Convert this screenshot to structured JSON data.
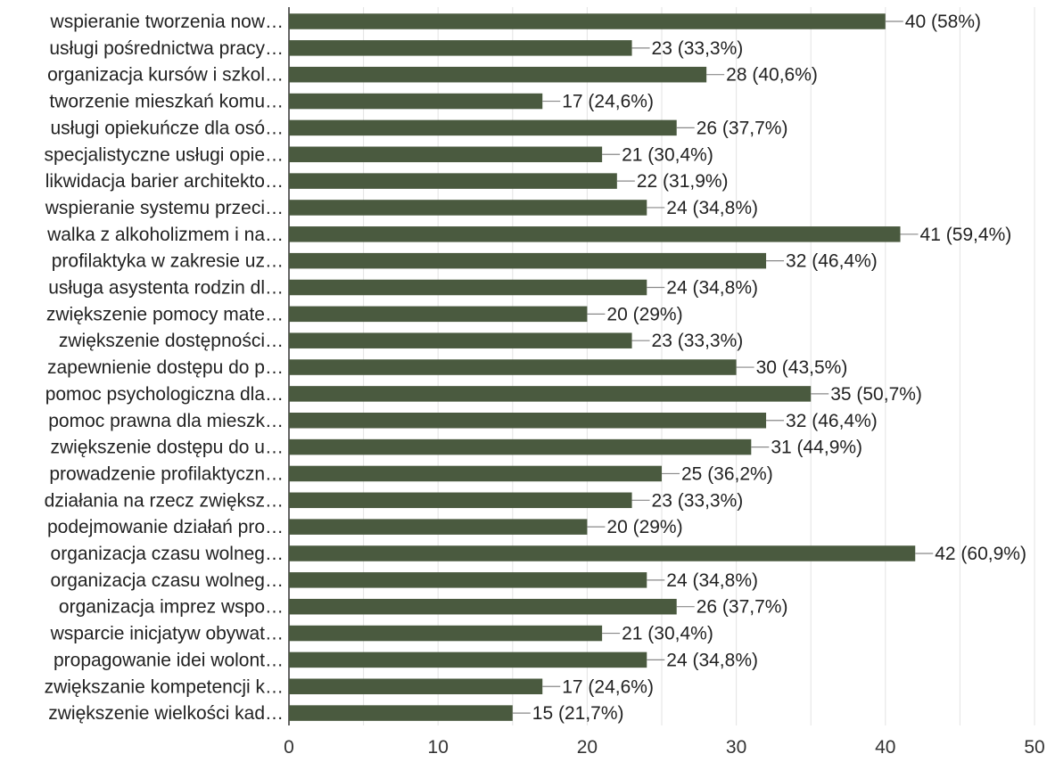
{
  "chart_data": {
    "type": "bar",
    "orientation": "horizontal",
    "categories": [
      "wspieranie tworzenia now…",
      "usługi pośrednictwa pracy…",
      "organizacja kursów i szkol…",
      "tworzenie mieszkań komu…",
      "usługi opiekuńcze dla osó…",
      "specjalistyczne usługi opie…",
      "likwidacja barier architekto…",
      "wspieranie systemu przeci…",
      "walka z alkoholizmem i na…",
      "profilaktyka w zakresie uz…",
      "usługa asystenta rodzin dl…",
      "zwiększenie pomocy mate…",
      "zwiększenie dostępności…",
      "zapewnienie dostępu do p…",
      "pomoc psychologiczna dla…",
      "pomoc prawna dla mieszk…",
      "zwiększenie dostępu do u…",
      "prowadzenie profilaktyczn…",
      "działania na rzecz zwiększ…",
      "podejmowanie działań pro…",
      "organizacja czasu wolneg…",
      "organizacja czasu wolneg…",
      "organizacja imprez wspo…",
      "wsparcie inicjatyw obywat…",
      "propagowanie idei wolont…",
      "zwiększanie kompetencji k…",
      "zwiększenie wielkości kad…"
    ],
    "values": [
      40,
      23,
      28,
      17,
      26,
      21,
      22,
      24,
      41,
      32,
      24,
      20,
      23,
      30,
      35,
      32,
      31,
      25,
      23,
      20,
      42,
      24,
      26,
      21,
      24,
      17,
      15
    ],
    "value_labels": [
      "40 (58%)",
      "23 (33,3%)",
      "28 (40,6%)",
      "17 (24,6%)",
      "26 (37,7%)",
      "21 (30,4%)",
      "22 (31,9%)",
      "24 (34,8%)",
      "41 (59,4%)",
      "32 (46,4%)",
      "24 (34,8%)",
      "20 (29%)",
      "23 (33,3%)",
      "30 (43,5%)",
      "35 (50,7%)",
      "32 (46,4%)",
      "31 (44,9%)",
      "25 (36,2%)",
      "23 (33,3%)",
      "20 (29%)",
      "42 (60,9%)",
      "24 (34,8%)",
      "26 (37,7%)",
      "21 (30,4%)",
      "24 (34,8%)",
      "17 (24,6%)",
      "15 (21,7%)"
    ],
    "xlim": [
      0,
      50
    ],
    "xticks": [
      0,
      10,
      20,
      30,
      40,
      50
    ],
    "grid": true,
    "bar_color": "#4a5a3f",
    "title": "",
    "xlabel": "",
    "ylabel": ""
  }
}
